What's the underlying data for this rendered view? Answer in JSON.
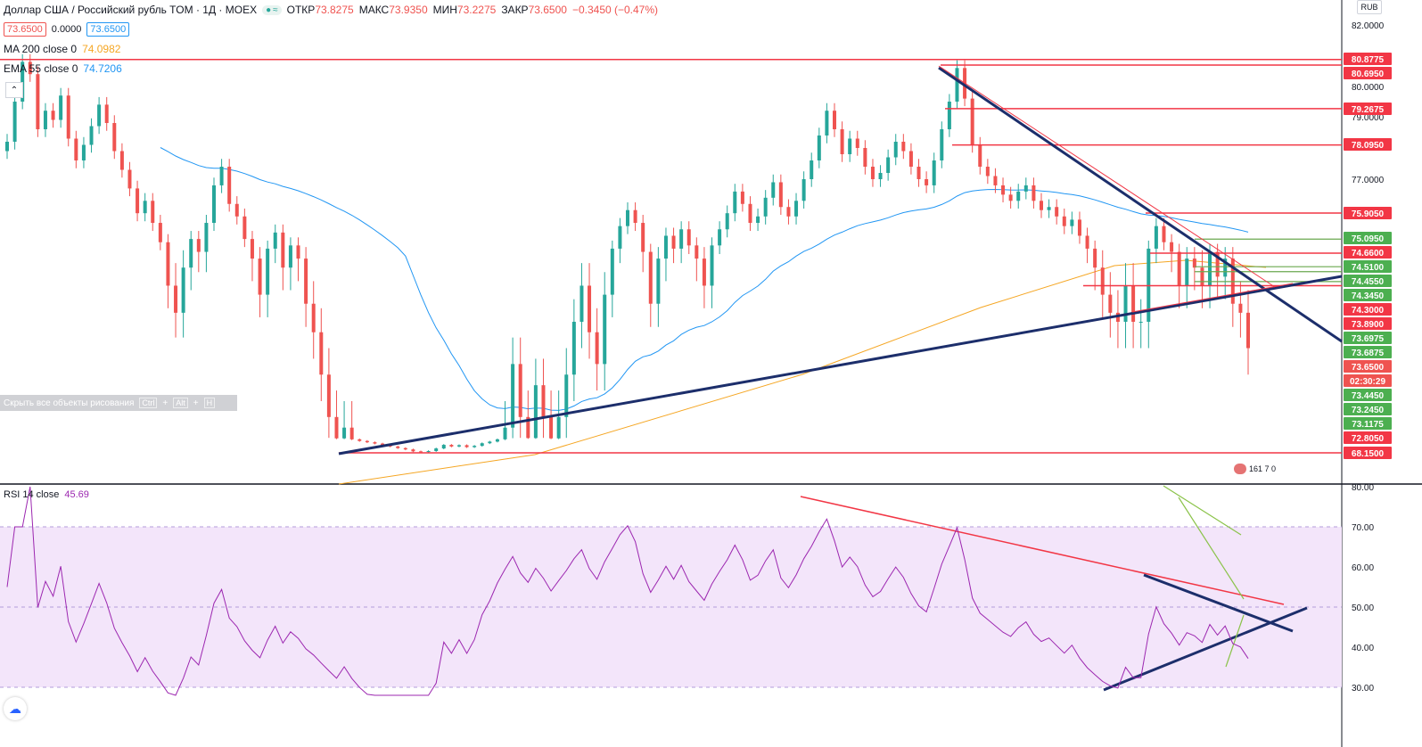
{
  "header": {
    "title": "Доллар США / Российский рубль TOM · 1Д · MOEX",
    "open_label": "ОТКР",
    "open": "73.8275",
    "high_label": "МАКС",
    "high": "73.9350",
    "low_label": "МИН",
    "low": "73.2275",
    "close_label": "ЗАКР",
    "close": "73.6500",
    "change": "−0.3450 (−0.47%)",
    "sell": "73.6500",
    "spread": "0.0000",
    "buy": "73.6500"
  },
  "indicators": {
    "ma": {
      "label": "MA 200 close 0",
      "value": "74.0982",
      "color": "#f5a623"
    },
    "ema": {
      "label": "EMA 55 close 0",
      "value": "74.7206",
      "color": "#2196f3"
    },
    "rsi": {
      "label": "RSI 14 close",
      "value": "45.69",
      "color": "#9c27b0"
    }
  },
  "toolbar": {
    "hide_drawings": "Скрыть все объекты рисования",
    "kbd1": "Ctrl",
    "kbd2": "Alt",
    "kbd3": "H"
  },
  "currency": "RUB",
  "flag_text": "161 7 0",
  "chart_data": {
    "type": "candlestick",
    "y_axis_ticks": [
      "82.0000",
      "80.0000",
      "79.0000",
      "77.0000"
    ],
    "price_labels": [
      {
        "value": "80.8775",
        "color": "#f23645"
      },
      {
        "value": "80.6950",
        "color": "#f23645"
      },
      {
        "value": "79.2675",
        "color": "#f23645"
      },
      {
        "value": "78.0950",
        "color": "#f23645"
      },
      {
        "value": "75.9050",
        "color": "#f23645"
      },
      {
        "value": "75.0950",
        "color": "#4caf50"
      },
      {
        "value": "74.6600",
        "color": "#f23645"
      },
      {
        "value": "74.5100",
        "color": "#4caf50"
      },
      {
        "value": "74.4550",
        "color": "#4caf50"
      },
      {
        "value": "74.3450",
        "color": "#4caf50"
      },
      {
        "value": "74.3000",
        "color": "#f23645"
      },
      {
        "value": "73.8900",
        "color": "#f23645"
      },
      {
        "value": "73.6975",
        "color": "#4caf50"
      },
      {
        "value": "73.6875",
        "color": "#4caf50"
      },
      {
        "value": "73.6500",
        "color": "#ef5350"
      },
      {
        "value": "02:30:29",
        "color": "#ef5350"
      },
      {
        "value": "73.4450",
        "color": "#4caf50"
      },
      {
        "value": "73.2450",
        "color": "#4caf50"
      },
      {
        "value": "73.1175",
        "color": "#4caf50"
      },
      {
        "value": "72.8050",
        "color": "#f23645"
      },
      {
        "value": "68.1500",
        "color": "#f23645"
      }
    ],
    "rsi_ticks": [
      "80.00",
      "70.00",
      "60.00",
      "50.00",
      "40.00",
      "30.00"
    ],
    "rsi_band": [
      30,
      70
    ],
    "closes": [
      78.2,
      79.5,
      80.8,
      80.4,
      78.6,
      79.2,
      78.9,
      79.7,
      78.3,
      77.6,
      78.1,
      78.7,
      79.4,
      78.8,
      77.9,
      77.3,
      76.7,
      75.9,
      76.3,
      75.6,
      75.0,
      74.3,
      74.0,
      74.5,
      75.1,
      74.7,
      75.6,
      76.8,
      77.4,
      76.2,
      75.8,
      75.1,
      74.6,
      74.2,
      74.8,
      75.3,
      74.5,
      74.9,
      74.6,
      74.1,
      73.8,
      73.4,
      73.0,
      72.6,
      72.9,
      72.3,
      71.8,
      71.4,
      71.0,
      70.6,
      70.1,
      69.6,
      69.2,
      68.6,
      68.4,
      68.7,
      69.5,
      70.6,
      70.1,
      70.5,
      69.9,
      70.3,
      71.1,
      71.6,
      72.3,
      72.9,
      73.5,
      73.0,
      72.7,
      73.3,
      73.0,
      72.6,
      73.0,
      73.4,
      73.9,
      74.3,
      73.8,
      73.5,
      74.2,
      74.8,
      75.5,
      76.0,
      75.6,
      74.7,
      74.1,
      74.6,
      75.2,
      74.8,
      75.4,
      74.9,
      74.6,
      74.3,
      74.9,
      75.4,
      75.9,
      76.6,
      76.2,
      75.6,
      75.8,
      76.4,
      76.9,
      76.1,
      75.8,
      76.3,
      77.0,
      77.6,
      78.4,
      79.2,
      78.6,
      77.8,
      78.3,
      78.0,
      77.4,
      77.0,
      77.2,
      77.7,
      78.2,
      77.9,
      77.4,
      77.0,
      76.8,
      77.6,
      78.6,
      79.5,
      80.6,
      79.6,
      78.1,
      77.4,
      77.1,
      76.8,
      76.5,
      76.3,
      76.6,
      76.8,
      76.3,
      76.0,
      76.1,
      75.8,
      75.5,
      75.7,
      75.2,
      74.8,
      74.5,
      74.2,
      74.0,
      73.9,
      74.3,
      73.9,
      73.9,
      74.8,
      75.5,
      75.0,
      74.7,
      74.3,
      74.6,
      74.5,
      74.3,
      74.7,
      74.4,
      74.6,
      74.1,
      74.0,
      73.65
    ]
  }
}
